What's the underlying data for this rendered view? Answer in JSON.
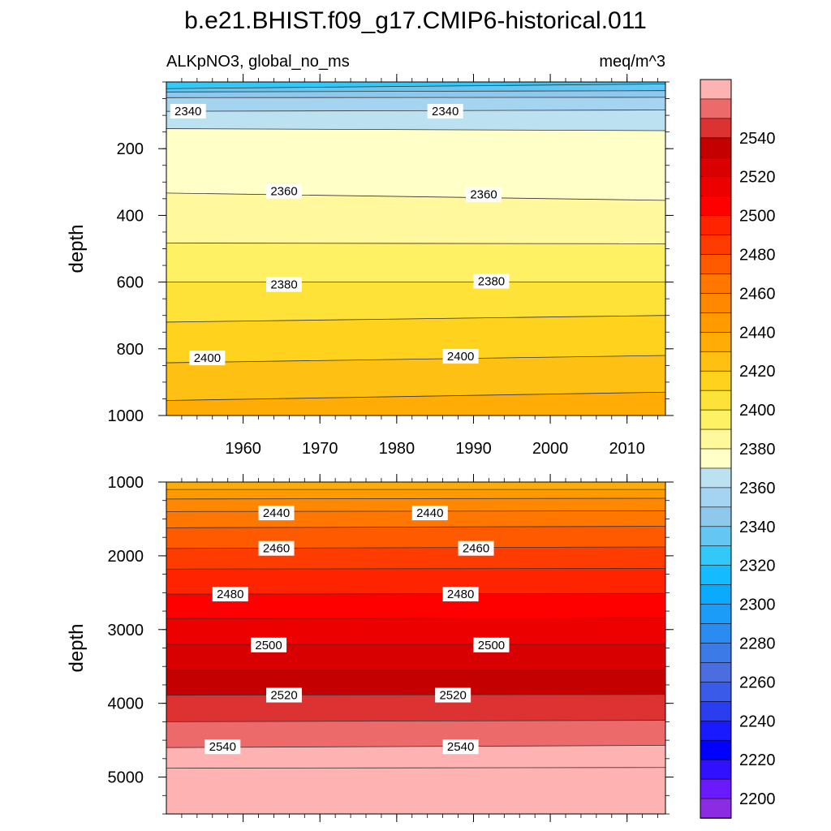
{
  "chart_data": {
    "type": "heatmap",
    "title": "b.e21.BHIST.f09_g17.CMIP6-historical.011",
    "subtitle_left": "ALKpNO3, global_no_ms",
    "subtitle_right": "meq/m^3",
    "colorbar": {
      "levels": [
        2190,
        2200,
        2210,
        2220,
        2230,
        2240,
        2250,
        2260,
        2270,
        2280,
        2290,
        2300,
        2310,
        2320,
        2330,
        2340,
        2350,
        2360,
        2370,
        2380,
        2390,
        2400,
        2410,
        2420,
        2430,
        2440,
        2450,
        2460,
        2470,
        2480,
        2490,
        2500,
        2510,
        2520,
        2530,
        2540,
        2550,
        2560
      ],
      "colors": [
        "#8b2be2",
        "#6a1aff",
        "#3010ff",
        "#0000ff",
        "#1a1aff",
        "#2a3ef0",
        "#3a5ae8",
        "#4a6ee0",
        "#3c7ae8",
        "#2a8cf0",
        "#1a9cf8",
        "#0aaaff",
        "#14bbff",
        "#32c8f8",
        "#64c6f2",
        "#8ec8ec",
        "#a4d4f0",
        "#bce2f2",
        "#ffffc8",
        "#fff89c",
        "#fff064",
        "#ffe238",
        "#ffd21e",
        "#ffc014",
        "#ffac06",
        "#ff9a00",
        "#ff8800",
        "#ff7600",
        "#ff5a00",
        "#ff3c00",
        "#ff2400",
        "#ff0000",
        "#ec0000",
        "#d80000",
        "#c40000",
        "#dc3232",
        "#ec6a6a",
        "#ffb2b2"
      ],
      "tick_labels": [
        "2200",
        "2220",
        "2240",
        "2260",
        "2280",
        "2300",
        "2320",
        "2340",
        "2360",
        "2380",
        "2400",
        "2420",
        "2440",
        "2460",
        "2480",
        "2500",
        "2520",
        "2540"
      ]
    },
    "panels": [
      {
        "name": "upper",
        "ylabel": "depth",
        "xlim": [
          1950,
          2015
        ],
        "ylim": [
          0,
          1000
        ],
        "y_inverted": true,
        "ytick_labels": [
          "200",
          "400",
          "600",
          "800",
          "1000"
        ],
        "xtick_labels": [
          "1960",
          "1970",
          "1980",
          "1990",
          "2000",
          "2010"
        ],
        "contour_depths": [
          [
            20,
            6
          ],
          [
            30,
            26
          ],
          [
            47,
            46
          ],
          [
            88,
            84
          ],
          [
            140,
            146
          ],
          [
            333,
            355
          ],
          [
            483,
            485
          ],
          [
            600,
            600
          ],
          [
            720,
            700
          ],
          [
            842,
            820
          ],
          [
            955,
            930
          ]
        ],
        "contour_labels": [
          {
            "text": "2340",
            "year": 1950.5,
            "depth": 90
          },
          {
            "text": "2340",
            "year": 1984,
            "depth": 90
          },
          {
            "text": "2360",
            "year": 1963,
            "depth": 330
          },
          {
            "text": "2360",
            "year": 1989,
            "depth": 340
          },
          {
            "text": "2380",
            "year": 1963,
            "depth": 610
          },
          {
            "text": "2380",
            "year": 1990,
            "depth": 600
          },
          {
            "text": "2400",
            "year": 1953,
            "depth": 830
          },
          {
            "text": "2400",
            "year": 1986,
            "depth": 825
          }
        ]
      },
      {
        "name": "lower",
        "ylabel": "depth",
        "xlim": [
          1950,
          2015
        ],
        "ylim": [
          1000,
          5500
        ],
        "y_inverted": true,
        "ytick_labels": [
          "1000",
          "2000",
          "3000",
          "4000",
          "5000"
        ],
        "contour_depths": [
          [
            1100,
            1100
          ],
          [
            1230,
            1220
          ],
          [
            1400,
            1390
          ],
          [
            1620,
            1600
          ],
          [
            1900,
            1880
          ],
          [
            2180,
            2170
          ],
          [
            2520,
            2510
          ],
          [
            2850,
            2840
          ],
          [
            3200,
            3200
          ],
          [
            3550,
            3550
          ],
          [
            3890,
            3880
          ],
          [
            4250,
            4230
          ],
          [
            4600,
            4570
          ],
          [
            4880,
            4870
          ]
        ],
        "contour_labels": [
          {
            "text": "2440",
            "year": 1962,
            "depth": 1430
          },
          {
            "text": "2440",
            "year": 1982,
            "depth": 1430
          },
          {
            "text": "2460",
            "year": 1962,
            "depth": 1910
          },
          {
            "text": "2460",
            "year": 1988,
            "depth": 1910
          },
          {
            "text": "2480",
            "year": 1956,
            "depth": 2530
          },
          {
            "text": "2480",
            "year": 1986,
            "depth": 2530
          },
          {
            "text": "2500",
            "year": 1961,
            "depth": 3220
          },
          {
            "text": "2500",
            "year": 1990,
            "depth": 3220
          },
          {
            "text": "2520",
            "year": 1963,
            "depth": 3900
          },
          {
            "text": "2520",
            "year": 1985,
            "depth": 3900
          },
          {
            "text": "2540",
            "year": 1955,
            "depth": 4600
          },
          {
            "text": "2540",
            "year": 1986,
            "depth": 4600
          }
        ]
      }
    ]
  }
}
